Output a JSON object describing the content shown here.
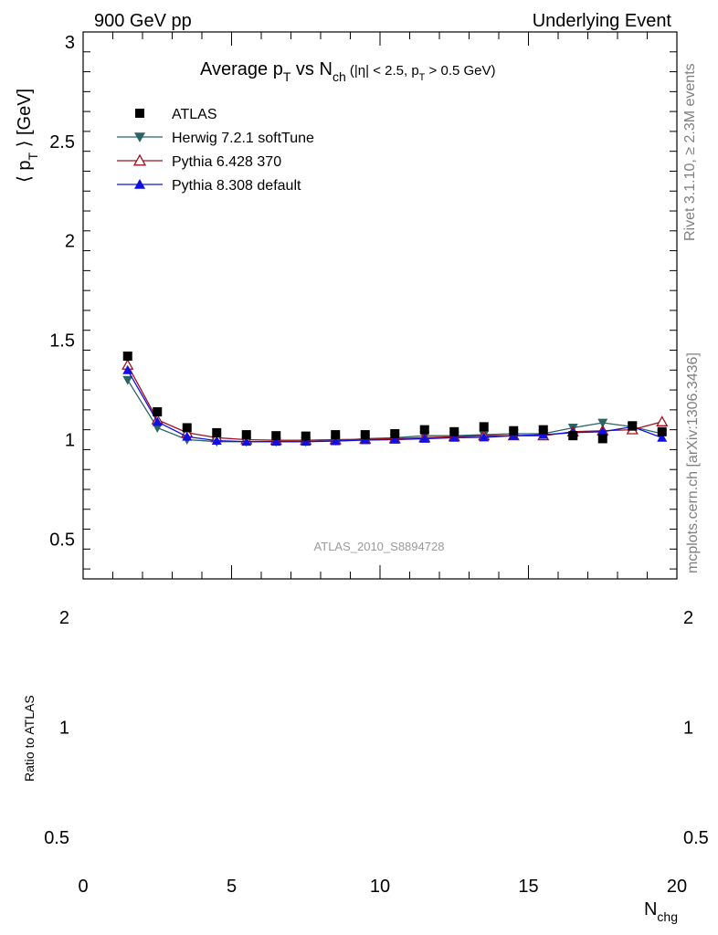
{
  "header": {
    "left": "900 GeV pp",
    "right": "Underlying Event"
  },
  "side": {
    "top": "Rivet 3.1.10, ≥ 2.3M events",
    "bottom": "mcplots.cern.ch [arXiv:1306.3436]"
  },
  "analysis_id": "ATLAS_2010_S8894728",
  "chart_data": {
    "type": "scatter",
    "title": "Average p_T vs N_ch (|η| < 2.5, p_T > 0.5 GeV)",
    "title_parts": {
      "main": "Average p",
      "sub1": "T",
      "vs": " vs N",
      "sub2": "ch",
      "cond_a": " (|η| < 2.5, p",
      "cond_sub": "T",
      "cond_b": " > 0.5 GeV)"
    },
    "ylabel": "⟨ p_T ⟩ [GeV]",
    "ylabel_parts": {
      "open": "⟨ p",
      "sub": "T",
      "close": " ⟩ [GeV]"
    },
    "xlabel": "N_chg",
    "xlabel_parts": {
      "main": "N",
      "sub": "chg"
    },
    "xlim": [
      0,
      20
    ],
    "ylim": [
      0.3,
      3.05
    ],
    "x_ticks": [
      0,
      5,
      10,
      15,
      20
    ],
    "x_tick_labels": [
      "0",
      "5",
      "10",
      "15",
      "20"
    ],
    "y_ticks": [
      0.5,
      1,
      1.5,
      2,
      2.5,
      3
    ],
    "y_tick_labels": [
      "0.5",
      "1",
      "1.5",
      "2",
      "2.5",
      "3"
    ],
    "ratio": {
      "ylabel": "Ratio to ATLAS",
      "ylim": [
        0.5,
        2
      ],
      "ticks": [
        2,
        1,
        0.5
      ],
      "tick_labels": [
        "2",
        "1",
        "0.5"
      ]
    },
    "legend_position": "top-left",
    "x": [
      1.5,
      2.5,
      3.5,
      4.5,
      5.5,
      6.5,
      7.5,
      8.5,
      9.5,
      10.5,
      11.5,
      12.5,
      13.5,
      14.5,
      15.5,
      16.5,
      17.5,
      18.5,
      19.5
    ],
    "series": [
      {
        "name": "ATLAS",
        "color": "#000000",
        "marker": "square",
        "line": false,
        "values": [
          1.42,
          1.14,
          1.06,
          1.035,
          1.025,
          1.02,
          1.018,
          1.025,
          1.025,
          1.03,
          1.05,
          1.04,
          1.065,
          1.045,
          1.05,
          1.02,
          1.005,
          1.07,
          1.04
        ]
      },
      {
        "name": "Herwig 7.2.1 softTune",
        "color": "#2a6464",
        "marker": "triangle-down",
        "line": true,
        "values": [
          1.3,
          1.06,
          1.0,
          0.99,
          0.99,
          0.99,
          0.99,
          0.995,
          1.005,
          1.01,
          1.02,
          1.02,
          1.025,
          1.03,
          1.03,
          1.06,
          1.085,
          1.065,
          1.03
        ]
      },
      {
        "name": "Pythia 6.428 370",
        "color": "#a0101e",
        "marker": "triangle-up-open",
        "line": true,
        "values": [
          1.375,
          1.1,
          1.035,
          1.01,
          1.0,
          0.997,
          0.997,
          1.0,
          1.002,
          1.005,
          1.01,
          1.015,
          1.02,
          1.02,
          1.02,
          1.04,
          1.045,
          1.05,
          1.09
        ]
      },
      {
        "name": "Pythia 8.308 default",
        "color": "#1010e0",
        "marker": "triangle-up",
        "line": true,
        "values": [
          1.35,
          1.09,
          1.015,
          0.995,
          0.99,
          0.99,
          0.99,
          0.993,
          0.998,
          1.0,
          1.005,
          1.01,
          1.012,
          1.02,
          1.025,
          1.035,
          1.04,
          1.065,
          1.01
        ]
      }
    ]
  }
}
